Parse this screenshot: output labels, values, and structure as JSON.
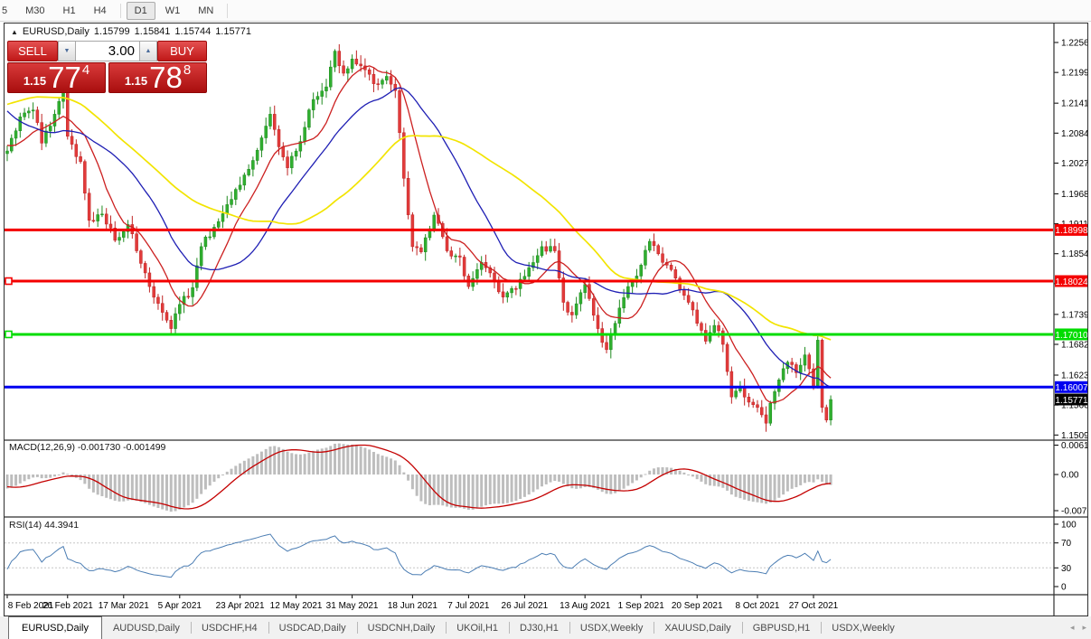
{
  "toolbar": {
    "items": [
      {
        "label": "5",
        "active": false
      },
      {
        "label": "M30",
        "active": false
      },
      {
        "label": "H1",
        "active": false
      },
      {
        "label": "H4",
        "active": false
      },
      {
        "label": "D1",
        "active": true
      },
      {
        "label": "W1",
        "active": false
      },
      {
        "label": "MN",
        "active": false
      }
    ]
  },
  "chart_header": {
    "symbol": "EURUSD,Daily",
    "open": "1.15799",
    "high": "1.15841",
    "low": "1.15744",
    "close": "1.15771"
  },
  "trade_panel": {
    "sell_label": "SELL",
    "buy_label": "BUY",
    "volume": "3.00",
    "spinner_down": "▼",
    "spinner_up": "▲",
    "sell_price": {
      "prefix": "1.15",
      "big": "77",
      "sup": "4"
    },
    "buy_price": {
      "prefix": "1.15",
      "big": "78",
      "sup": "8"
    }
  },
  "indicators": {
    "macd_label": "MACD(12,26,9)",
    "macd_values": "-0.001730 -0.001499",
    "rsi_label": "RSI(14)",
    "rsi_value": "44.3941"
  },
  "tabs": {
    "items": [
      "EURUSD,Daily",
      "AUDUSD,Daily",
      "USDCHF,H4",
      "USDCAD,Daily",
      "USDCNH,Daily",
      "UKOil,H1",
      "DJ30,H1",
      "USDX,Weekly",
      "XAUUSD,Daily",
      "GBPUSD,H1",
      "USDX,Weekly"
    ],
    "active_index": 0,
    "nav_left": "◂",
    "nav_right": "▸"
  },
  "colors": {
    "bull": "#2FAF2F",
    "bull_border": "#1F8A1F",
    "bear": "#E23B3B",
    "bear_border": "#BF2424",
    "ma_fast": "#CC2020",
    "ma_mid": "#1F1FB4",
    "ma_slow": "#F2E400",
    "macd_hist": "#BDBDBD",
    "macd_signal": "#C40000",
    "rsi_line": "#4B7DB3",
    "level_dash": "#C6C6C6",
    "border": "#2F2F2F",
    "axis_text": "#000000",
    "badge_text": "#FFFFFF"
  },
  "chart_data": {
    "type": "candlestick",
    "symbol": "EURUSD",
    "timeframe": "Daily",
    "last_ohlc": {
      "open": 1.15799,
      "high": 1.15841,
      "low": 1.15744,
      "close": 1.15771
    },
    "price_axis": {
      "tick_values": [
        1.22565,
        1.21995,
        1.2141,
        1.2084,
        1.2027,
        1.19685,
        1.19115,
        1.18545,
        1.17975,
        1.1739,
        1.1682,
        1.16235,
        1.15665,
        1.15095
      ],
      "tick_labels": [
        "1.22565",
        "1.21995",
        "1.21410",
        "1.20840",
        "1.20270",
        "1.19685",
        "1.19115",
        "1.18545",
        "1.17975",
        "1.17390",
        "1.16820",
        "1.16235",
        "1.15665",
        "1.15095"
      ]
    },
    "hlines": [
      {
        "price": 1.18998,
        "label": "1.18998",
        "color": "#F40000",
        "marker": false
      },
      {
        "price": 1.18024,
        "label": "1.18024",
        "color": "#F40000",
        "marker": true
      },
      {
        "price": 1.1701,
        "label": "1.17010",
        "color": "#00DC00",
        "marker": true
      },
      {
        "price": 1.16007,
        "label": "1.16007",
        "color": "#0000F0",
        "marker": false
      }
    ],
    "current_price": {
      "price": 1.15771,
      "label": "1.15771",
      "color": "#000000"
    },
    "moving_averages": [
      {
        "period": 10,
        "color_key": "ma_fast",
        "width": 1.3
      },
      {
        "period": 25,
        "color_key": "ma_mid",
        "width": 1.3
      },
      {
        "period": 50,
        "color_key": "ma_slow",
        "width": 1.7
      }
    ],
    "macd": {
      "params": [
        12,
        26,
        9
      ],
      "axis_values": [
        0.006193,
        0.0,
        -0.007621
      ],
      "axis_labels": [
        "0.006193",
        "0.00",
        "-0.007621"
      ],
      "last_macd": -0.00173,
      "last_signal": -0.001499
    },
    "rsi": {
      "period": 14,
      "axis_values": [
        100,
        70,
        30,
        0
      ],
      "axis_labels": [
        "100",
        "70",
        "30",
        "0"
      ],
      "levels": [
        70,
        30
      ],
      "last_value": 44.3941
    },
    "date_axis": {
      "labels": [
        "8 Feb 2021",
        "26 Feb 2021",
        "17 Mar 2021",
        "5 Apr 2021",
        "23 Apr 2021",
        "12 May 2021",
        "31 May 2021",
        "18 Jun 2021",
        "7 Jul 2021",
        "26 Jul 2021",
        "13 Aug 2021",
        "1 Sep 2021",
        "20 Sep 2021",
        "8 Oct 2021",
        "27 Oct 2021"
      ],
      "bar_indices": [
        0,
        14,
        27,
        40,
        54,
        67,
        80,
        94,
        107,
        120,
        134,
        147,
        160,
        174,
        187
      ]
    },
    "bar_count": 192,
    "close_anchors": [
      [
        -60,
        1.18
      ],
      [
        -50,
        1.1935
      ],
      [
        -42,
        1.208
      ],
      [
        -34,
        1.2215
      ],
      [
        -28,
        1.229
      ],
      [
        -22,
        1.225
      ],
      [
        -16,
        1.214
      ],
      [
        -10,
        1.2085
      ],
      [
        -5,
        1.206
      ],
      [
        -1,
        1.2045
      ],
      [
        0,
        1.205
      ],
      [
        3,
        1.2115
      ],
      [
        6,
        1.2128
      ],
      [
        8,
        1.2065
      ],
      [
        11,
        1.212
      ],
      [
        13,
        1.2165
      ],
      [
        14,
        1.2078
      ],
      [
        17,
        1.203
      ],
      [
        19,
        1.1918
      ],
      [
        22,
        1.193
      ],
      [
        25,
        1.188
      ],
      [
        28,
        1.191
      ],
      [
        30,
        1.186
      ],
      [
        33,
        1.1792
      ],
      [
        35,
        1.176
      ],
      [
        37,
        1.1728
      ],
      [
        38,
        1.1712
      ],
      [
        40,
        1.1758
      ],
      [
        43,
        1.179
      ],
      [
        45,
        1.1868
      ],
      [
        48,
        1.1905
      ],
      [
        51,
        1.1948
      ],
      [
        54,
        1.1985
      ],
      [
        57,
        1.2032
      ],
      [
        59,
        1.2075
      ],
      [
        61,
        1.212
      ],
      [
        63,
        1.2058
      ],
      [
        65,
        1.2018
      ],
      [
        68,
        1.2068
      ],
      [
        71,
        1.2148
      ],
      [
        74,
        1.2172
      ],
      [
        76,
        1.224
      ],
      [
        78,
        1.2198
      ],
      [
        80,
        1.2225
      ],
      [
        82,
        1.2212
      ],
      [
        85,
        1.2178
      ],
      [
        88,
        1.2192
      ],
      [
        90,
        1.2165
      ],
      [
        92,
        1.1998
      ],
      [
        94,
        1.1868
      ],
      [
        96,
        1.1858
      ],
      [
        99,
        1.1928
      ],
      [
        102,
        1.186
      ],
      [
        105,
        1.1848
      ],
      [
        107,
        1.1792
      ],
      [
        110,
        1.1838
      ],
      [
        113,
        1.1802
      ],
      [
        115,
        1.1772
      ],
      [
        118,
        1.1788
      ],
      [
        121,
        1.1828
      ],
      [
        124,
        1.1868
      ],
      [
        127,
        1.186
      ],
      [
        129,
        1.1762
      ],
      [
        131,
        1.1738
      ],
      [
        134,
        1.1796
      ],
      [
        137,
        1.1712
      ],
      [
        139,
        1.1672
      ],
      [
        141,
        1.1722
      ],
      [
        144,
        1.1792
      ],
      [
        146,
        1.1812
      ],
      [
        149,
        1.1878
      ],
      [
        150,
        1.187
      ],
      [
        152,
        1.1838
      ],
      [
        155,
        1.1808
      ],
      [
        158,
        1.1762
      ],
      [
        160,
        1.1722
      ],
      [
        162,
        1.1688
      ],
      [
        164,
        1.1718
      ],
      [
        166,
        1.1682
      ],
      [
        168,
        1.1582
      ],
      [
        170,
        1.1602
      ],
      [
        172,
        1.1572
      ],
      [
        174,
        1.1562
      ],
      [
        176,
        1.1532
      ],
      [
        178,
        1.1592
      ],
      [
        181,
        1.1648
      ],
      [
        183,
        1.1628
      ],
      [
        185,
        1.1662
      ],
      [
        187,
        1.1602
      ],
      [
        188,
        1.169
      ],
      [
        189,
        1.1562
      ],
      [
        190,
        1.1538
      ],
      [
        191,
        1.1577
      ]
    ]
  }
}
